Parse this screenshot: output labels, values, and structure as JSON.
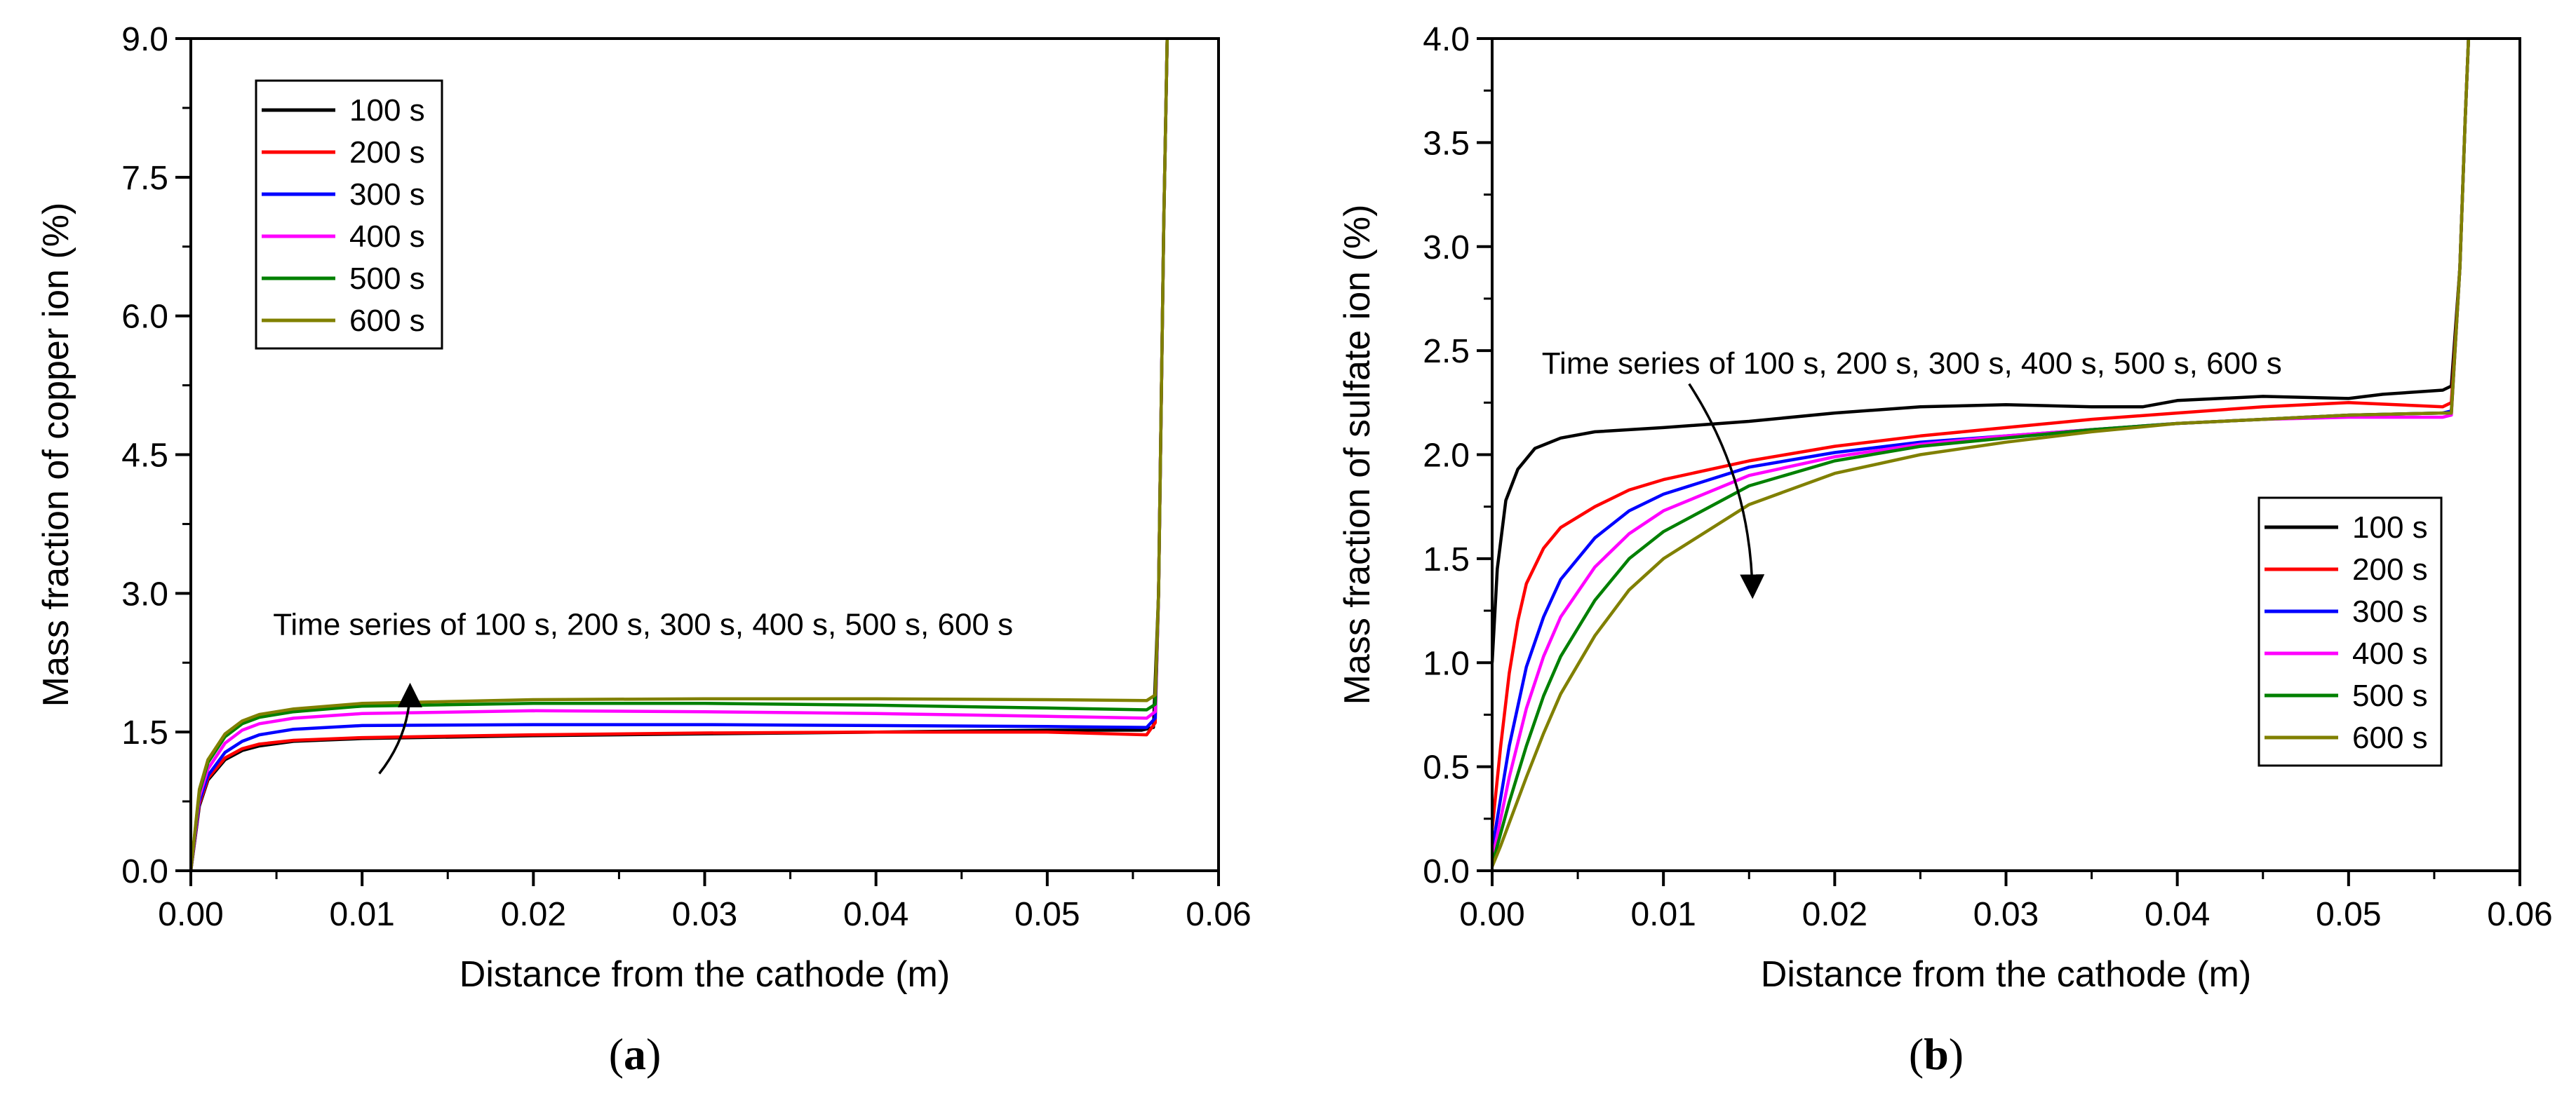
{
  "chart_data": [
    {
      "id": "a",
      "type": "line",
      "panel_label": "a",
      "xlabel": "Distance from the cathode (m)",
      "ylabel": "Mass fraction of copper ion (%)",
      "xlim": [
        0,
        0.06
      ],
      "ylim": [
        0,
        9.0
      ],
      "xticks": [
        0.0,
        0.01,
        0.02,
        0.03,
        0.04,
        0.05,
        0.06
      ],
      "xtick_labels": [
        "0.00",
        "0.01",
        "0.02",
        "0.03",
        "0.04",
        "0.05",
        "0.06"
      ],
      "yticks": [
        0,
        1.5,
        3.0,
        4.5,
        6.0,
        7.5,
        9.0
      ],
      "ytick_labels": [
        "0.0",
        "1.5",
        "3.0",
        "4.5",
        "6.0",
        "7.5",
        "9.0"
      ],
      "legend_position": "top-left",
      "annotation": {
        "text": "Time series of 100 s, 200 s, 300 s, 400 s, 500 s, 600 s",
        "arrow": "upward",
        "arrow_from": [
          0.011,
          1.05
        ],
        "arrow_to": [
          0.0128,
          1.98
        ],
        "text_at": [
          0.0048,
          2.55
        ]
      },
      "series": [
        {
          "name": "100 s",
          "color": "#000000",
          "points": [
            [
              0,
              0
            ],
            [
              0.0005,
              0.7
            ],
            [
              0.001,
              0.98
            ],
            [
              0.002,
              1.2
            ],
            [
              0.003,
              1.3
            ],
            [
              0.004,
              1.35
            ],
            [
              0.006,
              1.4
            ],
            [
              0.01,
              1.43
            ],
            [
              0.02,
              1.46
            ],
            [
              0.03,
              1.48
            ],
            [
              0.04,
              1.5
            ],
            [
              0.05,
              1.52
            ],
            [
              0.0555,
              1.52
            ],
            [
              0.0562,
              1.55
            ],
            [
              0.0565,
              3.0
            ],
            [
              0.0568,
              7.0
            ],
            [
              0.057,
              9.0
            ]
          ]
        },
        {
          "name": "200 s",
          "color": "#ff0000",
          "points": [
            [
              0,
              0
            ],
            [
              0.0005,
              0.72
            ],
            [
              0.001,
              1.0
            ],
            [
              0.002,
              1.22
            ],
            [
              0.003,
              1.32
            ],
            [
              0.004,
              1.37
            ],
            [
              0.006,
              1.41
            ],
            [
              0.01,
              1.44
            ],
            [
              0.02,
              1.47
            ],
            [
              0.03,
              1.49
            ],
            [
              0.04,
              1.5
            ],
            [
              0.05,
              1.5
            ],
            [
              0.0558,
              1.47
            ],
            [
              0.0563,
              1.6
            ],
            [
              0.0565,
              3.0
            ],
            [
              0.0568,
              7.0
            ],
            [
              0.057,
              9.0
            ]
          ]
        },
        {
          "name": "300 s",
          "color": "#0000ff",
          "points": [
            [
              0,
              0
            ],
            [
              0.0005,
              0.75
            ],
            [
              0.001,
              1.03
            ],
            [
              0.002,
              1.28
            ],
            [
              0.003,
              1.4
            ],
            [
              0.004,
              1.47
            ],
            [
              0.006,
              1.53
            ],
            [
              0.01,
              1.57
            ],
            [
              0.02,
              1.58
            ],
            [
              0.03,
              1.58
            ],
            [
              0.04,
              1.57
            ],
            [
              0.05,
              1.56
            ],
            [
              0.0558,
              1.55
            ],
            [
              0.0563,
              1.65
            ],
            [
              0.0565,
              3.0
            ],
            [
              0.0568,
              7.0
            ],
            [
              0.057,
              9.0
            ]
          ]
        },
        {
          "name": "400 s",
          "color": "#ff00ff",
          "points": [
            [
              0,
              0
            ],
            [
              0.0005,
              0.8
            ],
            [
              0.001,
              1.1
            ],
            [
              0.002,
              1.38
            ],
            [
              0.003,
              1.52
            ],
            [
              0.004,
              1.59
            ],
            [
              0.006,
              1.65
            ],
            [
              0.01,
              1.7
            ],
            [
              0.02,
              1.73
            ],
            [
              0.03,
              1.72
            ],
            [
              0.04,
              1.7
            ],
            [
              0.05,
              1.67
            ],
            [
              0.0558,
              1.65
            ],
            [
              0.0563,
              1.72
            ],
            [
              0.0565,
              3.0
            ],
            [
              0.0568,
              7.0
            ],
            [
              0.057,
              9.0
            ]
          ]
        },
        {
          "name": "500 s",
          "color": "#008000",
          "points": [
            [
              0,
              0
            ],
            [
              0.0005,
              0.85
            ],
            [
              0.001,
              1.17
            ],
            [
              0.002,
              1.45
            ],
            [
              0.003,
              1.59
            ],
            [
              0.004,
              1.66
            ],
            [
              0.006,
              1.72
            ],
            [
              0.01,
              1.78
            ],
            [
              0.02,
              1.81
            ],
            [
              0.03,
              1.81
            ],
            [
              0.04,
              1.79
            ],
            [
              0.05,
              1.76
            ],
            [
              0.0558,
              1.74
            ],
            [
              0.0563,
              1.8
            ],
            [
              0.0565,
              3.0
            ],
            [
              0.0568,
              7.0
            ],
            [
              0.057,
              9.0
            ]
          ]
        },
        {
          "name": "600 s",
          "color": "#808000",
          "points": [
            [
              0,
              0
            ],
            [
              0.0005,
              0.88
            ],
            [
              0.001,
              1.2
            ],
            [
              0.002,
              1.48
            ],
            [
              0.003,
              1.62
            ],
            [
              0.004,
              1.69
            ],
            [
              0.006,
              1.75
            ],
            [
              0.01,
              1.81
            ],
            [
              0.02,
              1.85
            ],
            [
              0.03,
              1.86
            ],
            [
              0.04,
              1.86
            ],
            [
              0.05,
              1.85
            ],
            [
              0.0558,
              1.84
            ],
            [
              0.0563,
              1.9
            ],
            [
              0.0565,
              3.0
            ],
            [
              0.0568,
              7.0
            ],
            [
              0.057,
              9.0
            ]
          ]
        }
      ]
    },
    {
      "id": "b",
      "type": "line",
      "panel_label": "b",
      "xlabel": "Distance from the cathode (m)",
      "ylabel": "Mass fraction of sulfate ion (%)",
      "xlim": [
        0,
        0.06
      ],
      "ylim": [
        0,
        4.0
      ],
      "xticks": [
        0.0,
        0.01,
        0.02,
        0.03,
        0.04,
        0.05,
        0.06
      ],
      "xtick_labels": [
        "0.00",
        "0.01",
        "0.02",
        "0.03",
        "0.04",
        "0.05",
        "0.06"
      ],
      "yticks": [
        0,
        0.5,
        1.0,
        1.5,
        2.0,
        2.5,
        3.0,
        3.5,
        4.0
      ],
      "ytick_labels": [
        "0.0",
        "0.5",
        "1.0",
        "1.5",
        "2.0",
        "2.5",
        "3.0",
        "3.5",
        "4.0"
      ],
      "legend_position": "bottom-right",
      "annotation": {
        "text": "Time series of 100 s, 200 s, 300 s, 400 s, 500 s, 600 s",
        "arrow": "downward",
        "arrow_from": [
          0.0115,
          2.34
        ],
        "arrow_to": [
          0.0152,
          1.33
        ],
        "text_at": [
          0.0029,
          2.39
        ]
      },
      "series": [
        {
          "name": "100 s",
          "color": "#000000",
          "points": [
            [
              0,
              1.0
            ],
            [
              0.0003,
              1.45
            ],
            [
              0.0008,
              1.78
            ],
            [
              0.0015,
              1.93
            ],
            [
              0.0025,
              2.03
            ],
            [
              0.004,
              2.08
            ],
            [
              0.006,
              2.11
            ],
            [
              0.01,
              2.13
            ],
            [
              0.015,
              2.16
            ],
            [
              0.02,
              2.2
            ],
            [
              0.025,
              2.23
            ],
            [
              0.03,
              2.24
            ],
            [
              0.035,
              2.23
            ],
            [
              0.038,
              2.23
            ],
            [
              0.04,
              2.26
            ],
            [
              0.045,
              2.28
            ],
            [
              0.05,
              2.27
            ],
            [
              0.052,
              2.29
            ],
            [
              0.0555,
              2.31
            ],
            [
              0.056,
              2.33
            ],
            [
              0.0565,
              2.9
            ],
            [
              0.0568,
              3.6
            ],
            [
              0.057,
              4.0
            ]
          ]
        },
        {
          "name": "200 s",
          "color": "#ff0000",
          "points": [
            [
              0,
              0.2
            ],
            [
              0.0005,
              0.6
            ],
            [
              0.001,
              0.95
            ],
            [
              0.0015,
              1.2
            ],
            [
              0.002,
              1.38
            ],
            [
              0.003,
              1.55
            ],
            [
              0.004,
              1.65
            ],
            [
              0.006,
              1.75
            ],
            [
              0.008,
              1.83
            ],
            [
              0.01,
              1.88
            ],
            [
              0.015,
              1.97
            ],
            [
              0.02,
              2.04
            ],
            [
              0.025,
              2.09
            ],
            [
              0.03,
              2.13
            ],
            [
              0.035,
              2.17
            ],
            [
              0.04,
              2.2
            ],
            [
              0.045,
              2.23
            ],
            [
              0.05,
              2.25
            ],
            [
              0.0555,
              2.23
            ],
            [
              0.056,
              2.25
            ],
            [
              0.0565,
              2.9
            ],
            [
              0.0568,
              3.6
            ],
            [
              0.057,
              4.0
            ]
          ]
        },
        {
          "name": "300 s",
          "color": "#0000ff",
          "points": [
            [
              0,
              0.1
            ],
            [
              0.0005,
              0.35
            ],
            [
              0.001,
              0.6
            ],
            [
              0.002,
              0.98
            ],
            [
              0.003,
              1.22
            ],
            [
              0.004,
              1.4
            ],
            [
              0.006,
              1.6
            ],
            [
              0.008,
              1.73
            ],
            [
              0.01,
              1.81
            ],
            [
              0.015,
              1.94
            ],
            [
              0.02,
              2.01
            ],
            [
              0.025,
              2.06
            ],
            [
              0.03,
              2.09
            ],
            [
              0.035,
              2.12
            ],
            [
              0.04,
              2.15
            ],
            [
              0.045,
              2.17
            ],
            [
              0.05,
              2.19
            ],
            [
              0.0555,
              2.2
            ],
            [
              0.056,
              2.21
            ],
            [
              0.0565,
              2.9
            ],
            [
              0.0568,
              3.6
            ],
            [
              0.057,
              4.0
            ]
          ]
        },
        {
          "name": "400 s",
          "color": "#ff00ff",
          "points": [
            [
              0,
              0.05
            ],
            [
              0.0005,
              0.25
            ],
            [
              0.001,
              0.45
            ],
            [
              0.002,
              0.78
            ],
            [
              0.003,
              1.03
            ],
            [
              0.004,
              1.22
            ],
            [
              0.006,
              1.46
            ],
            [
              0.008,
              1.62
            ],
            [
              0.01,
              1.73
            ],
            [
              0.015,
              1.9
            ],
            [
              0.02,
              1.99
            ],
            [
              0.025,
              2.05
            ],
            [
              0.03,
              2.09
            ],
            [
              0.035,
              2.12
            ],
            [
              0.04,
              2.15
            ],
            [
              0.045,
              2.17
            ],
            [
              0.05,
              2.18
            ],
            [
              0.0555,
              2.18
            ],
            [
              0.056,
              2.19
            ],
            [
              0.0565,
              2.9
            ],
            [
              0.0568,
              3.6
            ],
            [
              0.057,
              4.0
            ]
          ]
        },
        {
          "name": "500 s",
          "color": "#008000",
          "points": [
            [
              0,
              0.03
            ],
            [
              0.0005,
              0.18
            ],
            [
              0.001,
              0.33
            ],
            [
              0.002,
              0.6
            ],
            [
              0.003,
              0.84
            ],
            [
              0.004,
              1.03
            ],
            [
              0.006,
              1.3
            ],
            [
              0.008,
              1.5
            ],
            [
              0.01,
              1.63
            ],
            [
              0.015,
              1.85
            ],
            [
              0.02,
              1.97
            ],
            [
              0.025,
              2.04
            ],
            [
              0.03,
              2.08
            ],
            [
              0.035,
              2.12
            ],
            [
              0.04,
              2.15
            ],
            [
              0.045,
              2.17
            ],
            [
              0.05,
              2.19
            ],
            [
              0.0555,
              2.2
            ],
            [
              0.056,
              2.2
            ],
            [
              0.0565,
              2.9
            ],
            [
              0.0568,
              3.6
            ],
            [
              0.057,
              4.0
            ]
          ]
        },
        {
          "name": "600 s",
          "color": "#808000",
          "points": [
            [
              0,
              0.02
            ],
            [
              0.0005,
              0.12
            ],
            [
              0.001,
              0.23
            ],
            [
              0.002,
              0.45
            ],
            [
              0.003,
              0.66
            ],
            [
              0.004,
              0.85
            ],
            [
              0.006,
              1.13
            ],
            [
              0.008,
              1.35
            ],
            [
              0.01,
              1.5
            ],
            [
              0.015,
              1.76
            ],
            [
              0.02,
              1.91
            ],
            [
              0.025,
              2.0
            ],
            [
              0.03,
              2.06
            ],
            [
              0.035,
              2.11
            ],
            [
              0.04,
              2.15
            ],
            [
              0.045,
              2.17
            ],
            [
              0.05,
              2.19
            ],
            [
              0.0555,
              2.2
            ],
            [
              0.056,
              2.2
            ],
            [
              0.0565,
              2.9
            ],
            [
              0.0568,
              3.6
            ],
            [
              0.057,
              4.0
            ]
          ]
        }
      ]
    }
  ]
}
